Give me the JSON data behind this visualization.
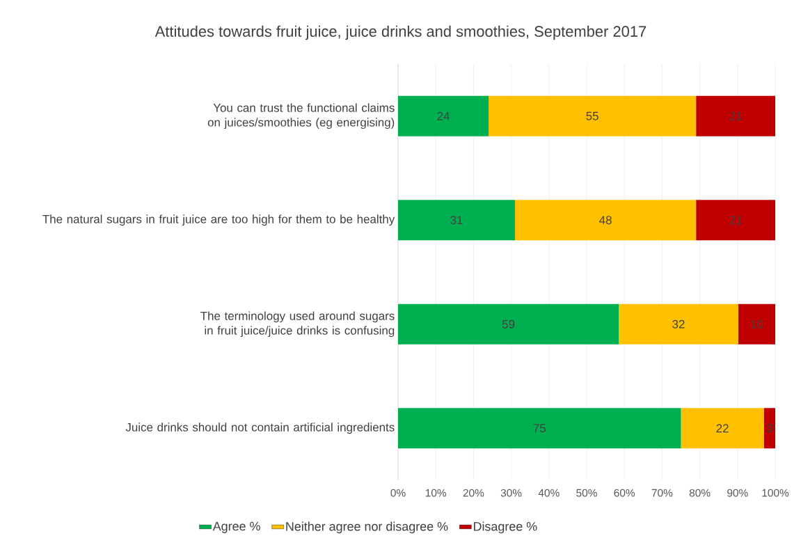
{
  "chart_data": {
    "type": "bar",
    "orientation": "horizontal",
    "stacked": true,
    "title": "Attitudes towards fruit juice, juice drinks and smoothies, September 2017",
    "categories": [
      "You can trust the functional claims on juices/smoothies (eg energising)",
      "The natural sugars in fruit juice are too high for them to be healthy",
      "The terminology used around sugars in fruit juice/juice drinks is confusing",
      "Juice drinks should not contain artificial ingredients"
    ],
    "series": [
      {
        "name": "Agree %",
        "color": "#00b050",
        "values": [
          24,
          31,
          58.5,
          75
        ],
        "value_labels": [
          "24",
          "31",
          "59",
          "75"
        ]
      },
      {
        "name": "Neither agree nor disagree %",
        "color": "#ffc000",
        "values": [
          55,
          48,
          31.7,
          22
        ],
        "value_labels": [
          "55",
          "48",
          "32",
          "22"
        ]
      },
      {
        "name": "Disagree %",
        "color": "#c00000",
        "values": [
          21,
          21,
          9.8,
          3
        ],
        "value_labels": [
          "21",
          "21",
          "10",
          "3"
        ]
      }
    ],
    "xlim": [
      0,
      100
    ],
    "xticks": [
      {
        "value": 0,
        "label": "0%"
      },
      {
        "value": 10,
        "label": "10%"
      },
      {
        "value": 20,
        "label": "20%"
      },
      {
        "value": 30,
        "label": "30%"
      },
      {
        "value": 40,
        "label": "40%"
      },
      {
        "value": 50,
        "label": "50%"
      },
      {
        "value": 60,
        "label": "60%"
      },
      {
        "value": 70,
        "label": "70%"
      },
      {
        "value": 80,
        "label": "80%"
      },
      {
        "value": 90,
        "label": "90%"
      },
      {
        "value": 100,
        "label": "100%"
      }
    ],
    "grid": "x",
    "legend": "bottom"
  }
}
